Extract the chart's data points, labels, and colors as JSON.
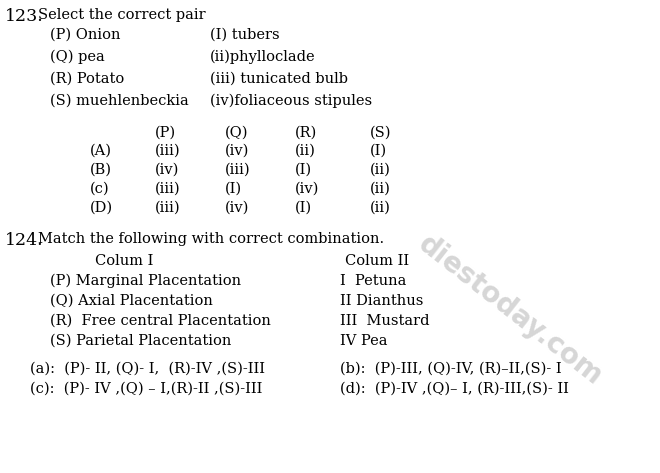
{
  "bg_color": "#ffffff",
  "text_color": "#000000",
  "q123_num": "123.",
  "q123_q": "Select the correct pair",
  "pairs_left": [
    "(P) Onion",
    "(Q) pea",
    "(R) Potato",
    "(S) muehlenbeckia"
  ],
  "pairs_right": [
    "(I) tubers",
    "(ii)phylloclade",
    "(iii) tunicated bulb",
    "(iv)foliaceous stipules"
  ],
  "tbl_header": [
    "",
    "(P)",
    "(Q)",
    "(R)",
    "(S)"
  ],
  "tbl_rows": [
    [
      "(A)",
      "(iii)",
      "(iv)",
      "(ii)",
      "(I)"
    ],
    [
      "(B)",
      "(iv)",
      "(iii)",
      "(I)",
      "(ii)"
    ],
    [
      "(c)",
      "(iii)",
      "(I)",
      "(iv)",
      "(ii)"
    ],
    [
      "(D)",
      "(iii)",
      "(iv)",
      "(I)",
      "(ii)"
    ]
  ],
  "q124_num": "124.",
  "q124_q": "Match the following with correct combination.",
  "col1_hdr": "Colum I",
  "col2_hdr": "Colum II",
  "col1_items": [
    "(P) Marginal Placentation",
    "(Q) Axial Placentation",
    "(R)  Free central Placentation",
    "(S) Parietal Placentation"
  ],
  "col2_items": [
    "I  Petuna",
    "II Dianthus",
    "III  Mustard",
    "IV Pea"
  ],
  "ans_a": "(a):  (P)- II, (Q)- I,  (R)-IV ,(S)-III",
  "ans_b": "(b):  (P)-III, (Q)-IV, (R)–II,(S)- I",
  "ans_c": "(c):  (P)- IV ,(Q) – I,(R)-II ,(S)-III",
  "ans_d": "(d):  (P)-IV ,(Q)– I, (R)-III,(S)- II",
  "watermark": "diestoday.com",
  "fs": 10.5,
  "fs_num": 12.5
}
